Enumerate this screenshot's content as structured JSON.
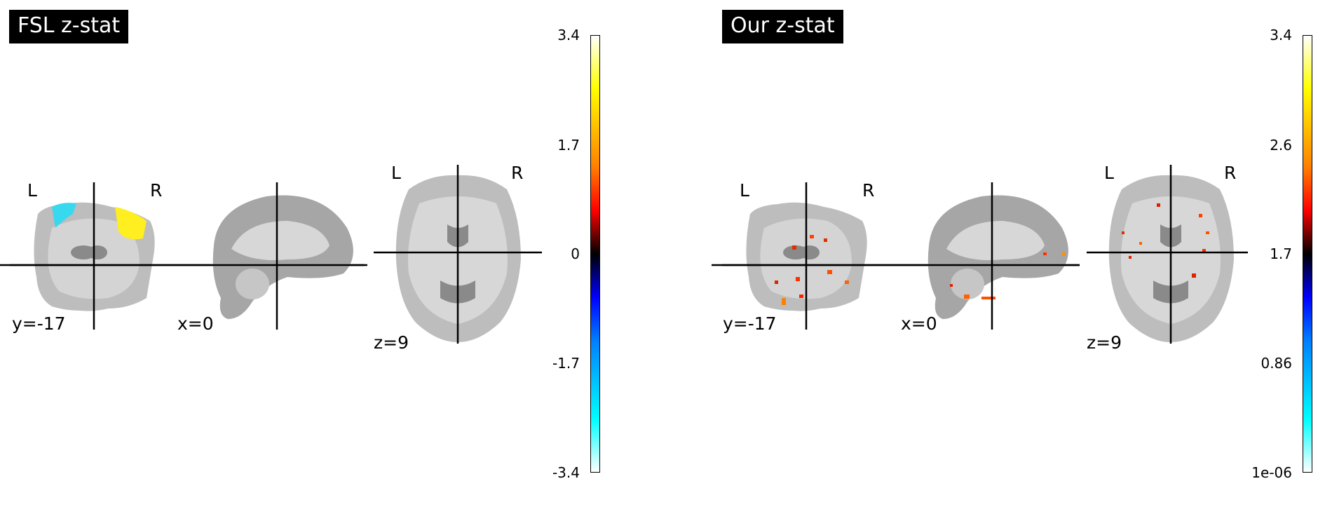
{
  "panels": [
    {
      "title": "FSL z-stat",
      "views": {
        "coronal": {
          "coord": "y=-17",
          "left_label": "L",
          "right_label": "R"
        },
        "sagittal": {
          "coord": "x=0"
        },
        "axial": {
          "coord": "z=9",
          "left_label": "L",
          "right_label": "R"
        }
      },
      "colorbar": {
        "colormap": "cold_hot",
        "ticks": [
          "3.4",
          "1.7",
          "0",
          "-1.7",
          "-3.4"
        ],
        "colors": [
          "#ffffff",
          "#ffff00",
          "#ff8000",
          "#ff0000",
          "#000000",
          "#0000ff",
          "#0080ff",
          "#00ffff",
          "#ffffff"
        ]
      }
    },
    {
      "title": "Our z-stat",
      "views": {
        "coronal": {
          "coord": "y=-17",
          "left_label": "L",
          "right_label": "R"
        },
        "sagittal": {
          "coord": "x=0"
        },
        "axial": {
          "coord": "z=9",
          "left_label": "L",
          "right_label": "R"
        }
      },
      "colorbar": {
        "colormap": "cold_hot",
        "ticks": [
          "3.4",
          "2.6",
          "1.7",
          "0.86",
          "1e-06"
        ],
        "colors": [
          "#ffffff",
          "#ffff00",
          "#ff8000",
          "#ff0000",
          "#000000",
          "#0000ff",
          "#0080ff",
          "#00ffff",
          "#ffffff"
        ]
      }
    }
  ]
}
